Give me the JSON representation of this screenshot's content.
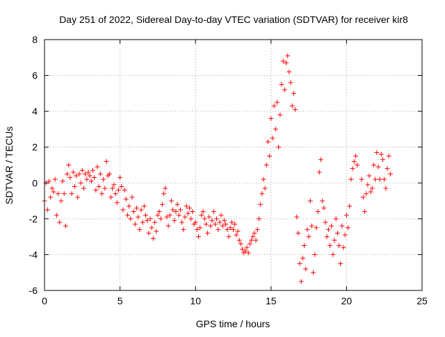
{
  "chart_data": {
    "type": "scatter",
    "title": "Day 251 of 2022, Sidereal Day-to-day VTEC variation (SDTVAR) for receiver kir8",
    "xlabel": "GPS time / hours",
    "ylabel": "SDTVAR / TECUs",
    "xlim": [
      0,
      25
    ],
    "ylim": [
      -6,
      8
    ],
    "x_ticks": [
      0,
      5,
      10,
      15,
      20,
      25
    ],
    "y_ticks": [
      -6,
      -4,
      -2,
      0,
      2,
      4,
      6,
      8
    ],
    "x_tick_labels": [
      "0",
      "5",
      "10",
      "15",
      "20",
      "25"
    ],
    "y_tick_labels": [
      "-6",
      "-4",
      "-2",
      "0",
      "2",
      "4",
      "6",
      "8"
    ],
    "grid": true,
    "marker": "+",
    "marker_color": "#ff0000",
    "series": [
      {
        "name": "SDTVAR",
        "x": [
          0.0,
          0.1,
          0.2,
          0.3,
          0.4,
          0.5,
          0.6,
          0.7,
          0.8,
          0.9,
          1.0,
          1.1,
          1.2,
          1.3,
          1.4,
          1.5,
          1.6,
          1.7,
          1.8,
          1.9,
          2.0,
          2.1,
          2.2,
          2.3,
          2.4,
          2.5,
          2.6,
          2.7,
          2.8,
          2.9,
          3.0,
          3.1,
          3.2,
          3.3,
          3.4,
          3.5,
          3.6,
          3.7,
          3.8,
          3.9,
          4.0,
          4.1,
          4.2,
          4.3,
          4.4,
          4.5,
          4.6,
          4.7,
          4.8,
          4.9,
          5.0,
          5.1,
          5.2,
          5.3,
          5.4,
          5.5,
          5.6,
          5.7,
          5.8,
          5.9,
          6.0,
          6.1,
          6.2,
          6.3,
          6.4,
          6.5,
          6.6,
          6.7,
          6.8,
          6.9,
          7.0,
          7.1,
          7.2,
          7.3,
          7.4,
          7.5,
          7.6,
          7.7,
          7.8,
          7.9,
          8.0,
          8.1,
          8.2,
          8.3,
          8.4,
          8.5,
          8.6,
          8.7,
          8.8,
          8.9,
          9.0,
          9.1,
          9.2,
          9.3,
          9.4,
          9.5,
          9.6,
          9.7,
          9.8,
          9.9,
          10.0,
          10.1,
          10.2,
          10.3,
          10.4,
          10.5,
          10.6,
          10.7,
          10.8,
          10.9,
          11.0,
          11.1,
          11.2,
          11.3,
          11.4,
          11.5,
          11.6,
          11.7,
          11.8,
          11.9,
          12.0,
          12.1,
          12.2,
          12.3,
          12.4,
          12.5,
          12.6,
          12.7,
          12.8,
          12.9,
          13.0,
          13.1,
          13.2,
          13.3,
          13.4,
          13.5,
          13.6,
          13.7,
          13.8,
          13.9,
          14.0,
          14.1,
          14.2,
          14.3,
          14.4,
          14.5,
          14.6,
          14.7,
          14.8,
          14.9,
          15.0,
          15.1,
          15.2,
          15.3,
          15.4,
          15.5,
          15.6,
          15.7,
          15.8,
          15.9,
          16.0,
          16.1,
          16.2,
          16.3,
          16.4,
          16.5,
          16.6,
          16.7,
          16.8,
          16.9,
          17.0,
          17.1,
          17.2,
          17.3,
          17.4,
          17.5,
          17.6,
          17.7,
          17.8,
          17.9,
          18.0,
          18.1,
          18.2,
          18.3,
          18.4,
          18.5,
          18.6,
          18.7,
          18.8,
          18.9,
          19.0,
          19.1,
          19.2,
          19.3,
          19.4,
          19.5,
          19.6,
          19.7,
          19.8,
          19.9,
          20.0,
          20.1,
          20.2,
          20.3,
          20.4,
          20.5,
          20.6,
          20.7,
          21.0,
          21.1,
          21.2,
          21.3,
          21.4,
          21.5,
          21.6,
          21.7,
          21.8,
          21.9,
          22.0,
          22.1,
          22.2,
          22.3,
          22.4,
          22.5,
          22.6,
          22.7,
          22.8,
          22.9
        ],
        "y": [
          -1.0,
          0.0,
          -1.5,
          0.1,
          -0.8,
          -0.3,
          -0.5,
          0.2,
          -1.8,
          -0.6,
          -2.2,
          -1.0,
          0.1,
          -0.6,
          -2.4,
          0.5,
          1.0,
          0.3,
          -0.6,
          0.6,
          -0.2,
          0.4,
          -0.8,
          0.5,
          0.0,
          0.7,
          -0.3,
          0.5,
          0.2,
          0.6,
          0.4,
          0.1,
          0.7,
          0.3,
          -0.4,
          0.9,
          -0.2,
          0.5,
          -0.6,
          0.2,
          -0.3,
          1.2,
          0.4,
          0.5,
          -0.8,
          -0.3,
          -0.1,
          -0.6,
          -1.1,
          -0.4,
          0.3,
          -0.2,
          -1.5,
          -0.4,
          -0.9,
          -1.8,
          -1.3,
          -2.0,
          -0.8,
          -1.6,
          -2.3,
          -1.4,
          -1.9,
          -2.6,
          -1.5,
          -2.2,
          -1.3,
          -1.8,
          -2.1,
          -2.8,
          -2.0,
          -2.5,
          -3.1,
          -2.2,
          -2.7,
          -1.8,
          -1.6,
          -2.0,
          -1.2,
          -0.6,
          -0.3,
          -1.9,
          -2.4,
          -1.8,
          -1.0,
          -1.5,
          -2.1,
          -1.6,
          -1.2,
          -1.8,
          -1.5,
          -2.2,
          -2.6,
          -1.9,
          -1.3,
          -1.7,
          -1.4,
          -2.0,
          -1.6,
          -2.3,
          -2.2,
          -2.6,
          -3.0,
          -2.5,
          -1.8,
          -1.6,
          -2.0,
          -2.3,
          -2.8,
          -1.9,
          -2.4,
          -2.1,
          -1.6,
          -2.3,
          -2.0,
          -2.6,
          -2.2,
          -1.8,
          -2.4,
          -2.1,
          -2.3,
          -2.6,
          -3.0,
          -2.5,
          -2.2,
          -2.6,
          -2.3,
          -2.9,
          -2.7,
          -3.2,
          -3.4,
          -3.7,
          -3.9,
          -3.8,
          -3.6,
          -3.9,
          -3.4,
          -3.2,
          -3.0,
          -2.8,
          -3.2,
          -2.6,
          -2.0,
          -1.2,
          -0.6,
          0.2,
          -0.3,
          1.0,
          2.3,
          1.5,
          3.6,
          2.5,
          4.3,
          3.0,
          4.5,
          2.0,
          3.8,
          5.5,
          6.8,
          5.2,
          6.7,
          7.1,
          6.2,
          5.6,
          4.3,
          5.0,
          4.1,
          -1.9,
          -2.8,
          -4.5,
          -5.5,
          -4.2,
          -3.5,
          -4.8,
          -2.6,
          -3.0,
          -1.0,
          -2.4,
          -5.0,
          -4.0,
          -2.5,
          -1.6,
          0.6,
          1.3,
          -1.0,
          -1.4,
          -2.2,
          -3.0,
          -2.6,
          -3.5,
          -2.4,
          -4.0,
          -3.2,
          -2.0,
          -2.8,
          -3.5,
          -4.5,
          -2.4,
          -3.6,
          -2.9,
          -1.8,
          -2.5,
          -1.3,
          0.2,
          0.8,
          1.2,
          1.5,
          1.0,
          0.2,
          -0.8,
          -1.6,
          -0.6,
          -0.1,
          0.4,
          -0.5,
          -0.3,
          1.0,
          0.2,
          1.7,
          0.9,
          0.2,
          1.6,
          1.3,
          0.2,
          -0.3,
          0.8,
          1.5,
          0.5
        ]
      }
    ]
  }
}
